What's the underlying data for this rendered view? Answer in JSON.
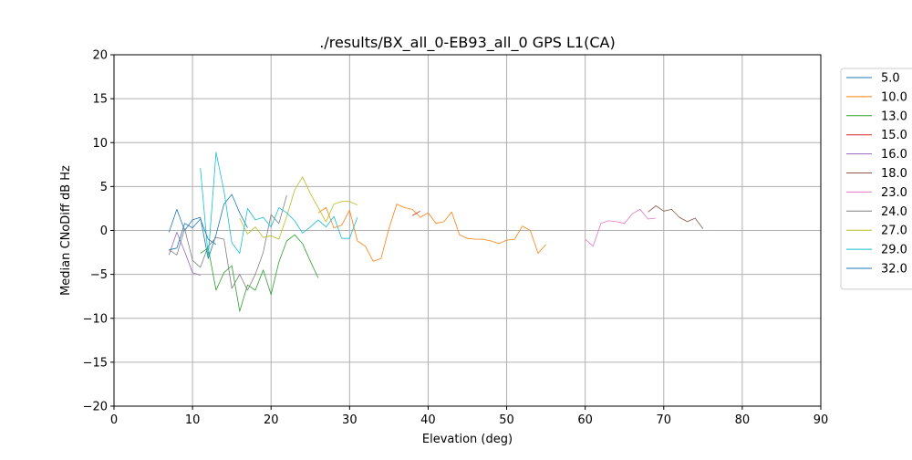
{
  "chart_data": {
    "type": "line",
    "title": "./results/BX_all_0-EB93_all_0 GPS L1(CA)",
    "xlabel": "Elevation (deg)",
    "ylabel": "Median CNoDiff dB Hz",
    "xlim": [
      0,
      90
    ],
    "ylim": [
      -20,
      20
    ],
    "xticks": [
      0,
      10,
      20,
      30,
      40,
      50,
      60,
      70,
      80,
      90
    ],
    "yticks": [
      -20,
      -15,
      -10,
      -5,
      0,
      5,
      10,
      15,
      20
    ],
    "grid": true,
    "legend_position": "outside-right",
    "series": [
      {
        "name": "5.0",
        "color": "#1f77b4",
        "points": [
          [
            7,
            -0.2
          ],
          [
            8,
            2.4
          ],
          [
            9,
            0.0
          ],
          [
            10,
            1.2
          ],
          [
            11,
            1.5
          ],
          [
            12,
            -3.2
          ],
          [
            13,
            -0.5
          ],
          [
            14,
            3.0
          ],
          [
            15,
            4.1
          ],
          [
            16,
            2.0
          ],
          [
            17,
            0.3
          ]
        ]
      },
      {
        "name": "10.0",
        "color": "#ff7f0e",
        "points": [
          [
            26,
            2.0
          ],
          [
            27,
            2.6
          ],
          [
            28,
            0.3
          ],
          [
            29,
            0.6
          ],
          [
            30,
            2.3
          ],
          [
            31,
            -1.2
          ],
          [
            32,
            -1.8
          ],
          [
            33,
            -3.5
          ],
          [
            34,
            -3.2
          ],
          [
            35,
            0.2
          ],
          [
            36,
            3.0
          ],
          [
            37,
            2.6
          ],
          [
            38,
            2.4
          ],
          [
            39,
            1.5
          ],
          [
            40,
            2.0
          ],
          [
            41,
            0.8
          ],
          [
            42,
            1.0
          ],
          [
            43,
            2.1
          ],
          [
            44,
            -0.5
          ],
          [
            45,
            -0.9
          ],
          [
            46,
            -1.0
          ],
          [
            47,
            -1.0
          ],
          [
            48,
            -1.2
          ],
          [
            49,
            -1.5
          ],
          [
            50,
            -1.1
          ],
          [
            51,
            -1.0
          ],
          [
            52,
            0.5
          ],
          [
            53,
            0.0
          ],
          [
            54,
            -2.6
          ],
          [
            55,
            -1.6
          ]
        ]
      },
      {
        "name": "13.0",
        "color": "#2ca02c",
        "points": [
          [
            11,
            -2.6
          ],
          [
            12,
            -2.0
          ],
          [
            13,
            -6.8
          ],
          [
            14,
            -4.8
          ],
          [
            15,
            -4.0
          ],
          [
            16,
            -9.2
          ],
          [
            17,
            -6.2
          ],
          [
            18,
            -6.8
          ],
          [
            19,
            -4.5
          ],
          [
            20,
            -7.3
          ],
          [
            21,
            -3.6
          ],
          [
            22,
            -1.2
          ],
          [
            23,
            -0.5
          ],
          [
            24,
            -1.5
          ],
          [
            25,
            -3.5
          ],
          [
            26,
            -5.4
          ]
        ]
      },
      {
        "name": "15.0",
        "color": "#d62728",
        "points": [
          [
            38,
            1.7
          ],
          [
            39,
            2.2
          ]
        ]
      },
      {
        "name": "16.0",
        "color": "#9467bd",
        "points": [
          [
            7,
            -2.8
          ],
          [
            8,
            -0.2
          ],
          [
            9,
            -2.4
          ],
          [
            10,
            -4.8
          ],
          [
            11,
            -5.1
          ]
        ]
      },
      {
        "name": "18.0",
        "color": "#8c564b",
        "points": [
          [
            68,
            2.1
          ],
          [
            69,
            2.8
          ],
          [
            70,
            2.2
          ],
          [
            71,
            2.4
          ],
          [
            72,
            1.5
          ],
          [
            73,
            1.0
          ],
          [
            74,
            1.4
          ],
          [
            75,
            0.2
          ]
        ]
      },
      {
        "name": "23.0",
        "color": "#e377c2",
        "points": [
          [
            60,
            -1.0
          ],
          [
            61,
            -1.8
          ],
          [
            62,
            0.8
          ],
          [
            63,
            1.1
          ],
          [
            64,
            1.0
          ],
          [
            65,
            0.8
          ],
          [
            66,
            1.9
          ],
          [
            67,
            2.4
          ],
          [
            68,
            1.3
          ],
          [
            69,
            1.4
          ]
        ]
      },
      {
        "name": "24.0",
        "color": "#7f7f7f",
        "points": [
          [
            7,
            -2.2
          ],
          [
            8,
            -2.8
          ],
          [
            9,
            0.2
          ],
          [
            10,
            -3.4
          ],
          [
            11,
            -4.2
          ],
          [
            12,
            -1.8
          ],
          [
            13,
            -0.8
          ],
          [
            14,
            -1.0
          ],
          [
            15,
            -6.6
          ],
          [
            16,
            -5.0
          ],
          [
            17,
            -6.8
          ],
          [
            18,
            -5.0
          ],
          [
            19,
            -2.5
          ],
          [
            20,
            1.8
          ],
          [
            21,
            0.8
          ],
          [
            22,
            4.0
          ]
        ]
      },
      {
        "name": "27.0",
        "color": "#bcbd22",
        "points": [
          [
            16,
            1.4
          ],
          [
            17,
            -0.4
          ],
          [
            18,
            0.4
          ],
          [
            19,
            -0.8
          ],
          [
            20,
            -0.6
          ],
          [
            21,
            -1.0
          ],
          [
            22,
            1.6
          ],
          [
            23,
            4.6
          ],
          [
            24,
            6.1
          ],
          [
            25,
            4.2
          ],
          [
            26,
            2.6
          ],
          [
            27,
            1.0
          ],
          [
            28,
            3.0
          ],
          [
            29,
            3.3
          ],
          [
            30,
            3.3
          ],
          [
            31,
            2.9
          ]
        ]
      },
      {
        "name": "29.0",
        "color": "#17becf",
        "points": [
          [
            11,
            7.1
          ],
          [
            12,
            -3.0
          ],
          [
            13,
            8.9
          ],
          [
            14,
            4.5
          ],
          [
            15,
            -1.4
          ],
          [
            16,
            -2.6
          ],
          [
            17,
            2.5
          ],
          [
            18,
            1.2
          ],
          [
            19,
            1.5
          ],
          [
            20,
            0.4
          ],
          [
            21,
            2.6
          ],
          [
            22,
            2.0
          ],
          [
            23,
            1.1
          ],
          [
            24,
            -0.3
          ],
          [
            25,
            0.4
          ],
          [
            26,
            1.2
          ],
          [
            27,
            0.4
          ],
          [
            28,
            1.6
          ],
          [
            29,
            -0.9
          ],
          [
            30,
            -0.9
          ],
          [
            31,
            1.5
          ]
        ]
      },
      {
        "name": "32.0",
        "color": "#1f77b4",
        "points": [
          [
            7,
            -2.2
          ],
          [
            8,
            -2.0
          ],
          [
            9,
            0.8
          ],
          [
            10,
            0.3
          ],
          [
            11,
            1.3
          ],
          [
            12,
            -1.0
          ],
          [
            13,
            -1.6
          ]
        ]
      }
    ]
  }
}
